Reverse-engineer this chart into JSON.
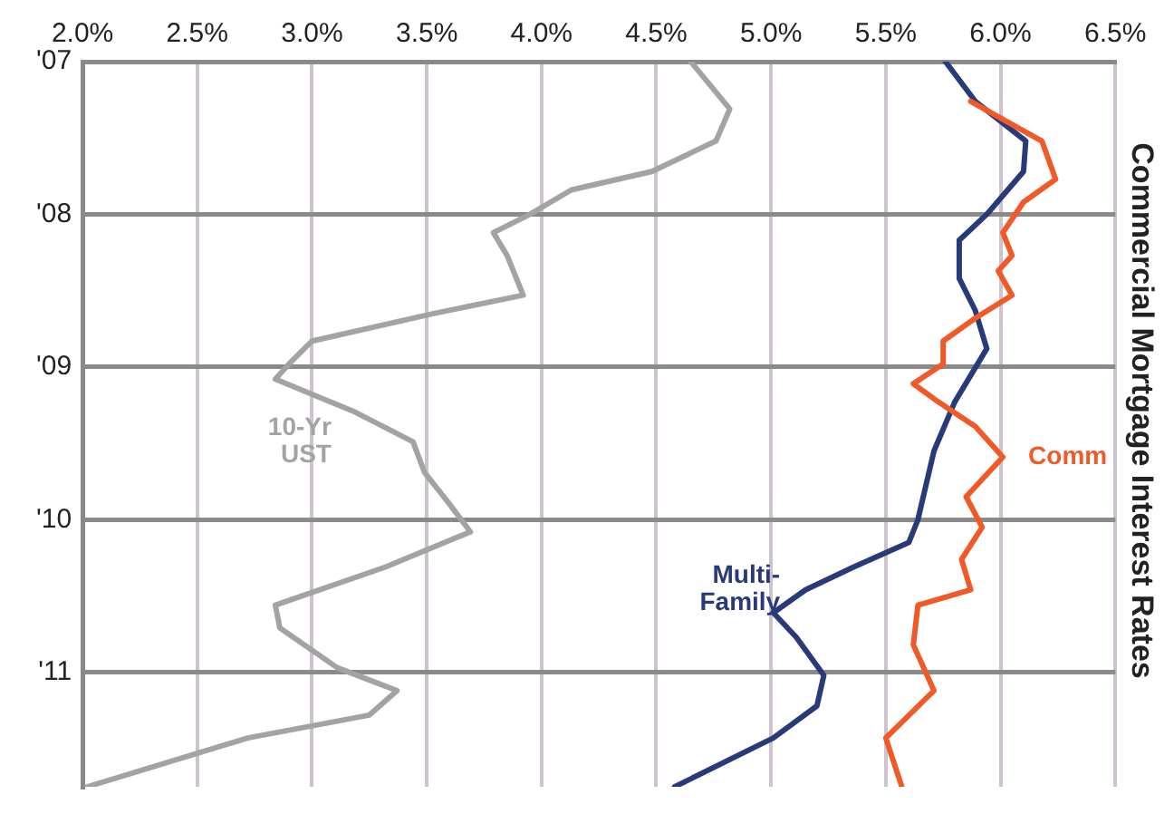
{
  "chart_data": {
    "type": "line",
    "title": "Commercial Mortgage Interest Rates",
    "ylim": [
      2011.75,
      2007
    ],
    "yticks": [
      {
        "value": 2007,
        "label": "'07"
      },
      {
        "value": 2008,
        "label": "'08"
      },
      {
        "value": 2009,
        "label": "'09"
      },
      {
        "value": 2010,
        "label": "'10"
      },
      {
        "value": 2011,
        "label": "'11"
      }
    ],
    "xlim": [
      2.0,
      6.5
    ],
    "xticks": [
      {
        "value": 2.0,
        "label": "2.0%"
      },
      {
        "value": 2.5,
        "label": "2.5%"
      },
      {
        "value": 3.0,
        "label": "3.0%"
      },
      {
        "value": 3.5,
        "label": "3.5%"
      },
      {
        "value": 4.0,
        "label": "4.0%"
      },
      {
        "value": 4.5,
        "label": "4.5%"
      },
      {
        "value": 5.0,
        "label": "5.0%"
      },
      {
        "value": 5.5,
        "label": "5.5%"
      },
      {
        "value": 6.0,
        "label": "6.0%"
      },
      {
        "value": 6.5,
        "label": "6.5%"
      }
    ],
    "grid": true,
    "legend": false,
    "marker": "none",
    "line_style": "solid",
    "series": [
      {
        "name": "Comm",
        "color": "#f05a28",
        "values": [
          2007.26,
          2007.52,
          2007.77,
          2007.92,
          2008.12,
          2008.27,
          2008.37,
          2008.53,
          2008.68,
          2008.83,
          2008.98,
          2009.11,
          2009.23,
          2009.39,
          2009.59,
          2009.85,
          2010.05,
          2010.26,
          2010.46,
          2010.56,
          2010.82,
          2011.12,
          2011.43,
          2011.75
        ],
        "x": [
          5.87,
          6.18,
          6.24,
          6.1,
          6.01,
          6.05,
          5.99,
          6.05,
          5.89,
          5.75,
          5.75,
          5.62,
          5.73,
          5.89,
          6.01,
          5.85,
          5.92,
          5.83,
          5.87,
          5.64,
          5.62,
          5.71,
          5.5,
          5.57
        ]
      },
      {
        "name": "Multi-Family",
        "color": "#283a7a",
        "values": [
          2007.0,
          2007.26,
          2007.52,
          2007.72,
          2008.0,
          2008.17,
          2008.42,
          2008.63,
          2008.88,
          2009.23,
          2009.55,
          2010.0,
          2010.15,
          2010.31,
          2010.46,
          2010.61,
          2010.77,
          2011.02,
          2011.22,
          2011.43,
          2011.75
        ],
        "x": [
          5.76,
          5.89,
          6.11,
          6.1,
          5.94,
          5.82,
          5.82,
          5.89,
          5.94,
          5.8,
          5.71,
          5.64,
          5.6,
          5.36,
          5.15,
          5.01,
          5.11,
          5.23,
          5.2,
          5.01,
          4.58
        ]
      },
      {
        "name": "10-Yr UST",
        "color": "#a3a3a3",
        "values": [
          2007.0,
          2007.31,
          2007.52,
          2007.72,
          2007.84,
          2008.0,
          2008.12,
          2008.27,
          2008.53,
          2008.65,
          2008.83,
          2008.98,
          2009.08,
          2009.29,
          2009.49,
          2009.69,
          2009.9,
          2010.08,
          2010.31,
          2010.56,
          2010.71,
          2010.97,
          2011.12,
          2011.28,
          2011.43,
          2011.75
        ],
        "x": [
          4.65,
          4.82,
          4.76,
          4.48,
          4.13,
          3.95,
          3.79,
          3.85,
          3.92,
          3.53,
          3.0,
          2.9,
          2.84,
          3.18,
          3.44,
          3.49,
          3.6,
          3.69,
          3.32,
          2.84,
          2.86,
          3.11,
          3.37,
          3.25,
          2.72,
          2.02
        ]
      }
    ]
  }
}
